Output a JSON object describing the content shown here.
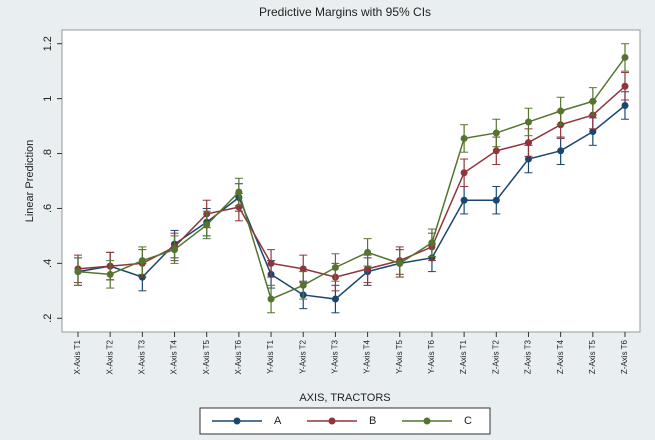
{
  "chart_data": {
    "type": "line",
    "title": "Predictive Margins with 95% CIs",
    "x_label": "AXIS, TRACTORS",
    "y_label": "Linear Prediction",
    "categories": [
      "X-Axis T1",
      "X-Axis T2",
      "X-Axis T3",
      "X-Axis T4",
      "X-Axis T5",
      "X-Axis T6",
      "Y-Axis T1",
      "Y-Axis T2",
      "Y-Axis T3",
      "Y-Axis T4",
      "Y-Axis T5",
      "Y-Axis T6",
      "Z-Axis T1",
      "Z-Axis T2",
      "Z-Axis T3",
      "Z-Axis T4",
      "Z-Axis T5",
      "Z-Axis T6"
    ],
    "series": [
      {
        "name": "A",
        "color": "#1a476f",
        "values": [
          0.37,
          0.39,
          0.35,
          0.47,
          0.55,
          0.64,
          0.36,
          0.285,
          0.27,
          0.37,
          0.4,
          0.42,
          0.63,
          0.63,
          0.78,
          0.81,
          0.88,
          0.975
        ],
        "errors": [
          0.05,
          0.05,
          0.05,
          0.05,
          0.05,
          0.05,
          0.05,
          0.05,
          0.05,
          0.05,
          0.05,
          0.05,
          0.05,
          0.05,
          0.05,
          0.05,
          0.05,
          0.05
        ]
      },
      {
        "name": "B",
        "color": "#90353b",
        "values": [
          0.38,
          0.39,
          0.4,
          0.46,
          0.58,
          0.605,
          0.4,
          0.38,
          0.35,
          0.38,
          0.41,
          0.46,
          0.73,
          0.81,
          0.84,
          0.905,
          0.94,
          1.045
        ],
        "errors": [
          0.05,
          0.05,
          0.05,
          0.05,
          0.05,
          0.05,
          0.05,
          0.05,
          0.05,
          0.05,
          0.05,
          0.05,
          0.05,
          0.05,
          0.05,
          0.05,
          0.05,
          0.05
        ]
      },
      {
        "name": "C",
        "color": "#55752f",
        "values": [
          0.37,
          0.36,
          0.41,
          0.45,
          0.54,
          0.66,
          0.27,
          0.32,
          0.385,
          0.44,
          0.4,
          0.475,
          0.855,
          0.875,
          0.915,
          0.955,
          0.99,
          1.15
        ],
        "errors": [
          0.05,
          0.05,
          0.05,
          0.05,
          0.05,
          0.05,
          0.05,
          0.05,
          0.05,
          0.05,
          0.05,
          0.05,
          0.05,
          0.05,
          0.05,
          0.05,
          0.05,
          0.05
        ]
      }
    ],
    "ylim": [
      0.15,
      1.25
    ],
    "yticks": [
      {
        "value": 0.2,
        "label": ".2"
      },
      {
        "value": 0.4,
        "label": ".4"
      },
      {
        "value": 0.6,
        "label": ".6"
      },
      {
        "value": 0.8,
        "label": ".8"
      },
      1,
      {
        "value": 1.2,
        "label": "1.2"
      }
    ],
    "grid": false,
    "legend": "bottom"
  }
}
